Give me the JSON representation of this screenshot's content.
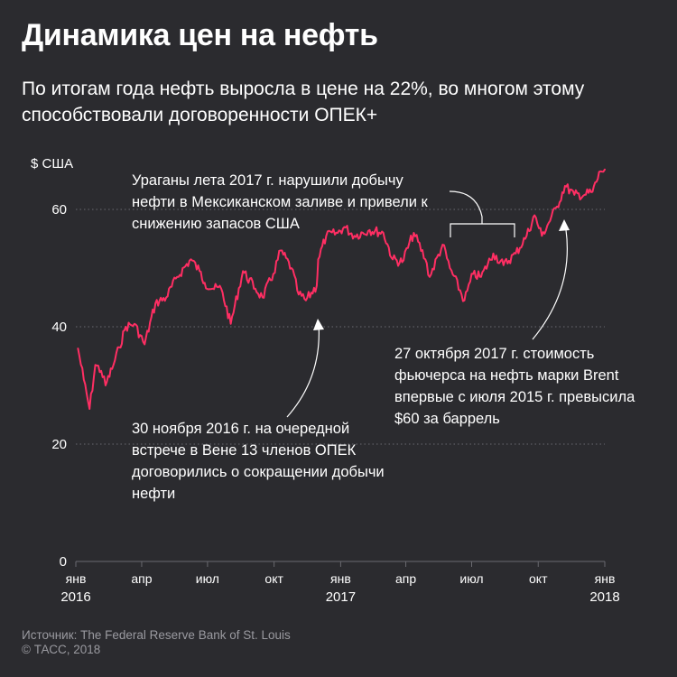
{
  "title": "Динамика цен на нефть",
  "subtitle": "По итогам года нефть выросла в цене на 22%, во многом этому способствовали договоренности ОПЕК+",
  "unit_label": "$ США",
  "annotations": {
    "hurricanes": "Ураганы лета 2017 г. нарушили добычу нефти в Мексиканском заливе и привели к снижению запасов США",
    "opec": "30 ноября 2016 г. на очередной встрече в Вене 13 членов ОПЕК договорились о сокращении добычи нефти",
    "brent": "27 октября 2017 г. стоимость фьючерса на нефть марки Brent впервые с июля 2015 г. превысила $60 за баррель"
  },
  "footer": {
    "source": "Источник: The Federal Reserve Bank of St. Louis",
    "copyright": "© ТАСС, 2018"
  },
  "colors": {
    "background": "#2b2b2f",
    "line": "#ff2e63",
    "grid": "#6a6a70",
    "text": "#ffffff",
    "muted": "#9a9aa0"
  },
  "chart_data": {
    "type": "line",
    "title": "Динамика цен на нефть",
    "ylabel": "$ США",
    "ylim": [
      0,
      70
    ],
    "yticks": [
      0,
      20,
      40,
      60
    ],
    "grid": "horizontal dotted",
    "xticks": [
      {
        "date": "2016-01-01",
        "label": "янв",
        "year": "2016"
      },
      {
        "date": "2016-04-01",
        "label": "апр",
        "year": ""
      },
      {
        "date": "2016-07-01",
        "label": "июл",
        "year": ""
      },
      {
        "date": "2016-10-01",
        "label": "окт",
        "year": ""
      },
      {
        "date": "2017-01-01",
        "label": "янв",
        "year": "2017"
      },
      {
        "date": "2017-04-01",
        "label": "апр",
        "year": ""
      },
      {
        "date": "2017-07-01",
        "label": "июл",
        "year": ""
      },
      {
        "date": "2017-10-01",
        "label": "окт",
        "year": ""
      },
      {
        "date": "2018-01-01",
        "label": "янв",
        "year": "2018"
      }
    ],
    "series": [
      {
        "values": [
          {
            "x": "2016-01-04",
            "y": 36.3
          },
          {
            "x": "2016-01-12",
            "y": 31.0
          },
          {
            "x": "2016-01-20",
            "y": 26.0
          },
          {
            "x": "2016-01-28",
            "y": 33.5
          },
          {
            "x": "2016-02-05",
            "y": 32.5
          },
          {
            "x": "2016-02-11",
            "y": 30.0
          },
          {
            "x": "2016-02-22",
            "y": 33.5
          },
          {
            "x": "2016-03-01",
            "y": 36.5
          },
          {
            "x": "2016-03-10",
            "y": 40.0
          },
          {
            "x": "2016-03-22",
            "y": 40.5
          },
          {
            "x": "2016-04-05",
            "y": 37.0
          },
          {
            "x": "2016-04-20",
            "y": 44.0
          },
          {
            "x": "2016-05-05",
            "y": 45.0
          },
          {
            "x": "2016-05-20",
            "y": 48.5
          },
          {
            "x": "2016-06-08",
            "y": 51.5
          },
          {
            "x": "2016-06-20",
            "y": 49.5
          },
          {
            "x": "2016-06-27",
            "y": 47.5
          },
          {
            "x": "2016-07-08",
            "y": 46.5
          },
          {
            "x": "2016-07-20",
            "y": 46.5
          },
          {
            "x": "2016-08-02",
            "y": 40.5
          },
          {
            "x": "2016-08-19",
            "y": 49.5
          },
          {
            "x": "2016-09-05",
            "y": 46.5
          },
          {
            "x": "2016-09-15",
            "y": 45.0
          },
          {
            "x": "2016-09-30",
            "y": 49.0
          },
          {
            "x": "2016-10-10",
            "y": 53.0
          },
          {
            "x": "2016-10-25",
            "y": 50.0
          },
          {
            "x": "2016-11-04",
            "y": 45.5
          },
          {
            "x": "2016-11-14",
            "y": 44.5
          },
          {
            "x": "2016-11-29",
            "y": 47.0
          },
          {
            "x": "2016-12-01",
            "y": 51.5
          },
          {
            "x": "2016-12-12",
            "y": 55.5
          },
          {
            "x": "2016-12-28",
            "y": 56.0
          },
          {
            "x": "2017-01-06",
            "y": 57.0
          },
          {
            "x": "2017-01-20",
            "y": 55.5
          },
          {
            "x": "2017-02-10",
            "y": 56.5
          },
          {
            "x": "2017-03-01",
            "y": 56.0
          },
          {
            "x": "2017-03-14",
            "y": 51.5
          },
          {
            "x": "2017-03-27",
            "y": 51.0
          },
          {
            "x": "2017-04-12",
            "y": 56.0
          },
          {
            "x": "2017-04-28",
            "y": 51.5
          },
          {
            "x": "2017-05-04",
            "y": 48.5
          },
          {
            "x": "2017-05-22",
            "y": 54.0
          },
          {
            "x": "2017-06-01",
            "y": 50.0
          },
          {
            "x": "2017-06-21",
            "y": 44.5
          },
          {
            "x": "2017-07-03",
            "y": 49.0
          },
          {
            "x": "2017-07-14",
            "y": 48.5
          },
          {
            "x": "2017-07-31",
            "y": 52.5
          },
          {
            "x": "2017-08-14",
            "y": 50.5
          },
          {
            "x": "2017-08-31",
            "y": 52.5
          },
          {
            "x": "2017-09-15",
            "y": 55.5
          },
          {
            "x": "2017-09-26",
            "y": 59.0
          },
          {
            "x": "2017-10-06",
            "y": 55.5
          },
          {
            "x": "2017-10-27",
            "y": 60.5
          },
          {
            "x": "2017-11-07",
            "y": 64.0
          },
          {
            "x": "2017-11-20",
            "y": 62.5
          },
          {
            "x": "2017-12-04",
            "y": 62.5
          },
          {
            "x": "2017-12-15",
            "y": 63.0
          },
          {
            "x": "2017-12-26",
            "y": 66.5
          },
          {
            "x": "2018-01-01",
            "y": 66.8
          }
        ]
      }
    ]
  }
}
